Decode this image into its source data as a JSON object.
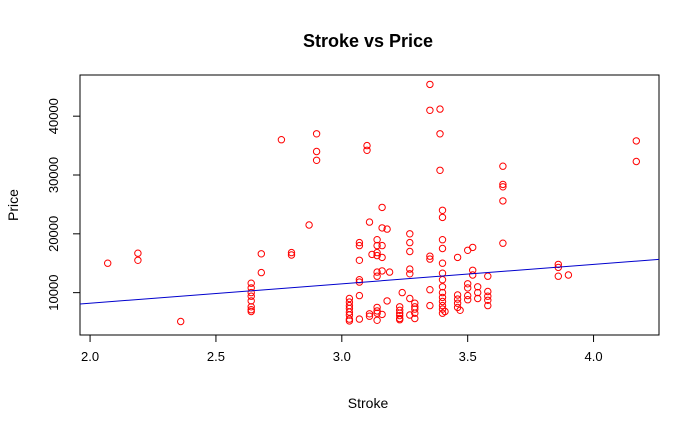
{
  "chart_data": {
    "type": "scatter",
    "title": "Stroke vs Price",
    "xlabel": "Stroke",
    "ylabel": "Price",
    "xlim": [
      1.96,
      4.26
    ],
    "ylim": [
      2800,
      47000
    ],
    "xticks": [
      "2.0",
      "2.5",
      "3.0",
      "3.5",
      "4.0"
    ],
    "xtick_values": [
      2.0,
      2.5,
      3.0,
      3.5,
      4.0
    ],
    "yticks": [
      "10000",
      "20000",
      "30000",
      "40000"
    ],
    "ytick_values": [
      10000,
      20000,
      30000,
      40000
    ],
    "point_color": "#ff0000",
    "line_color": "#0000cd",
    "regression": {
      "intercept": 1600,
      "slope": 3300
    },
    "series": [
      {
        "points": [
          [
            2.07,
            15000
          ],
          [
            2.19,
            16700
          ],
          [
            2.19,
            15500
          ],
          [
            2.36,
            5100
          ],
          [
            2.64,
            11600
          ],
          [
            2.64,
            10800
          ],
          [
            2.64,
            10000
          ],
          [
            2.64,
            9400
          ],
          [
            2.64,
            8600
          ],
          [
            2.64,
            7600
          ],
          [
            2.64,
            7100
          ],
          [
            2.64,
            6800
          ],
          [
            2.68,
            16600
          ],
          [
            2.68,
            13400
          ],
          [
            2.76,
            36000
          ],
          [
            2.8,
            16800
          ],
          [
            2.8,
            16400
          ],
          [
            2.87,
            21500
          ],
          [
            2.9,
            37000
          ],
          [
            2.9,
            34000
          ],
          [
            2.9,
            32500
          ],
          [
            3.03,
            9000
          ],
          [
            3.03,
            8400
          ],
          [
            3.03,
            7800
          ],
          [
            3.03,
            7300
          ],
          [
            3.03,
            6700
          ],
          [
            3.03,
            6200
          ],
          [
            3.03,
            5500
          ],
          [
            3.03,
            5200
          ],
          [
            3.07,
            18500
          ],
          [
            3.07,
            18000
          ],
          [
            3.07,
            15500
          ],
          [
            3.07,
            12200
          ],
          [
            3.07,
            11800
          ],
          [
            3.07,
            9500
          ],
          [
            3.07,
            5500
          ],
          [
            3.1,
            35000
          ],
          [
            3.1,
            34200
          ],
          [
            3.11,
            22000
          ],
          [
            3.11,
            6400
          ],
          [
            3.11,
            6000
          ],
          [
            3.12,
            16500
          ],
          [
            3.14,
            19000
          ],
          [
            3.14,
            18000
          ],
          [
            3.14,
            16800
          ],
          [
            3.14,
            16300
          ],
          [
            3.14,
            13500
          ],
          [
            3.14,
            12800
          ],
          [
            3.14,
            7500
          ],
          [
            3.14,
            6900
          ],
          [
            3.14,
            6500
          ],
          [
            3.14,
            5300
          ],
          [
            3.16,
            24500
          ],
          [
            3.16,
            21000
          ],
          [
            3.16,
            18000
          ],
          [
            3.16,
            16000
          ],
          [
            3.16,
            13700
          ],
          [
            3.16,
            6300
          ],
          [
            3.18,
            20800
          ],
          [
            3.18,
            8600
          ],
          [
            3.19,
            13500
          ],
          [
            3.23,
            7600
          ],
          [
            3.23,
            7000
          ],
          [
            3.23,
            6500
          ],
          [
            3.23,
            6100
          ],
          [
            3.23,
            5600
          ],
          [
            3.23,
            5400
          ],
          [
            3.24,
            10000
          ],
          [
            3.27,
            20000
          ],
          [
            3.27,
            18500
          ],
          [
            3.27,
            17000
          ],
          [
            3.27,
            14000
          ],
          [
            3.27,
            13200
          ],
          [
            3.27,
            9000
          ],
          [
            3.27,
            6200
          ],
          [
            3.29,
            8200
          ],
          [
            3.29,
            7600
          ],
          [
            3.29,
            7200
          ],
          [
            3.29,
            6500
          ],
          [
            3.29,
            5600
          ],
          [
            3.35,
            45400
          ],
          [
            3.35,
            41000
          ],
          [
            3.35,
            16200
          ],
          [
            3.35,
            15700
          ],
          [
            3.35,
            10500
          ],
          [
            3.35,
            7800
          ],
          [
            3.39,
            41200
          ],
          [
            3.39,
            37000
          ],
          [
            3.39,
            30800
          ],
          [
            3.4,
            24000
          ],
          [
            3.4,
            22800
          ],
          [
            3.4,
            19000
          ],
          [
            3.4,
            17500
          ],
          [
            3.4,
            15000
          ],
          [
            3.4,
            13300
          ],
          [
            3.4,
            12200
          ],
          [
            3.4,
            11000
          ],
          [
            3.4,
            10000
          ],
          [
            3.4,
            9200
          ],
          [
            3.4,
            8500
          ],
          [
            3.4,
            7800
          ],
          [
            3.4,
            7200
          ],
          [
            3.4,
            6500
          ],
          [
            3.41,
            6800
          ],
          [
            3.46,
            16000
          ],
          [
            3.46,
            9600
          ],
          [
            3.46,
            8900
          ],
          [
            3.46,
            8200
          ],
          [
            3.46,
            7500
          ],
          [
            3.47,
            7000
          ],
          [
            3.5,
            17200
          ],
          [
            3.5,
            11500
          ],
          [
            3.5,
            10800
          ],
          [
            3.5,
            9500
          ],
          [
            3.5,
            8800
          ],
          [
            3.52,
            17700
          ],
          [
            3.52,
            13800
          ],
          [
            3.52,
            13000
          ],
          [
            3.54,
            11000
          ],
          [
            3.54,
            10000
          ],
          [
            3.54,
            9000
          ],
          [
            3.58,
            10200
          ],
          [
            3.58,
            9400
          ],
          [
            3.58,
            8700
          ],
          [
            3.58,
            7800
          ],
          [
            3.58,
            12800
          ],
          [
            3.64,
            31500
          ],
          [
            3.64,
            28400
          ],
          [
            3.64,
            28000
          ],
          [
            3.64,
            25600
          ],
          [
            3.64,
            18400
          ],
          [
            3.86,
            14800
          ],
          [
            3.86,
            14300
          ],
          [
            3.86,
            12800
          ],
          [
            3.9,
            13000
          ],
          [
            4.17,
            35800
          ],
          [
            4.17,
            32300
          ]
        ]
      }
    ]
  }
}
